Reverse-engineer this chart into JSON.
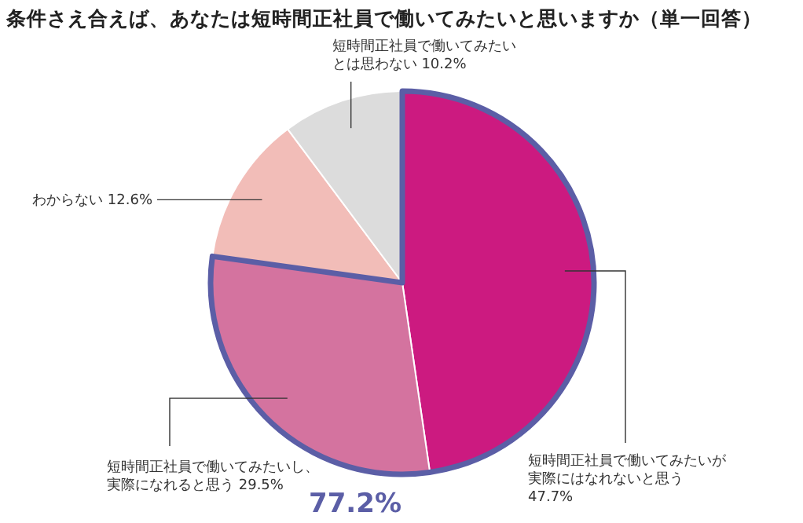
{
  "chart_data": {
    "type": "pie",
    "title": "条件さえ合えば、あなたは短時間正社員で働いてみたいと思いますか（単一回答）",
    "categories": [
      "短時間正社員で働いてみたいが実際にはなれないと思う",
      "短時間正社員で働いてみたいし、実際になれると思う",
      "わからない",
      "短時間正社員で働いてみたいとは思わない"
    ],
    "values": [
      47.7,
      29.5,
      12.6,
      10.2
    ],
    "value_labels": [
      "47.7%",
      "29.5%",
      "12.6%",
      "10.2%"
    ],
    "colors": [
      "#cc1a80",
      "#d4739f",
      "#f2bdb8",
      "#dcdcdc"
    ],
    "annotations": [
      "77.2%"
    ]
  }
}
